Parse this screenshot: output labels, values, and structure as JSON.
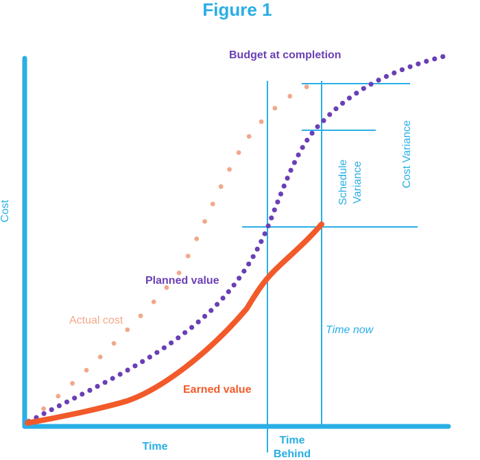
{
  "title": "Figure 1",
  "axes": {
    "y_label": "Cost",
    "x_label": "Time",
    "time_behind_line1": "Time",
    "time_behind_line2": "Behind"
  },
  "labels": {
    "budget_at_completion": "Budget at completion",
    "planned_value": "Planned value",
    "actual_cost": "Actual cost",
    "earned_value": "Earned value",
    "time_now": "Time now",
    "schedule_variance_line1": "Schedule",
    "schedule_variance_line2": "Variance",
    "cost_variance": "Cost Variance"
  },
  "colors": {
    "title": "#29aee6",
    "axis": "#29aee6",
    "guide": "#29aee6",
    "planned_value": "#6a3fb5",
    "actual_cost": "#f2a88a",
    "earned_value": "#f25a2a",
    "text_blue": "#29aee6"
  }
}
